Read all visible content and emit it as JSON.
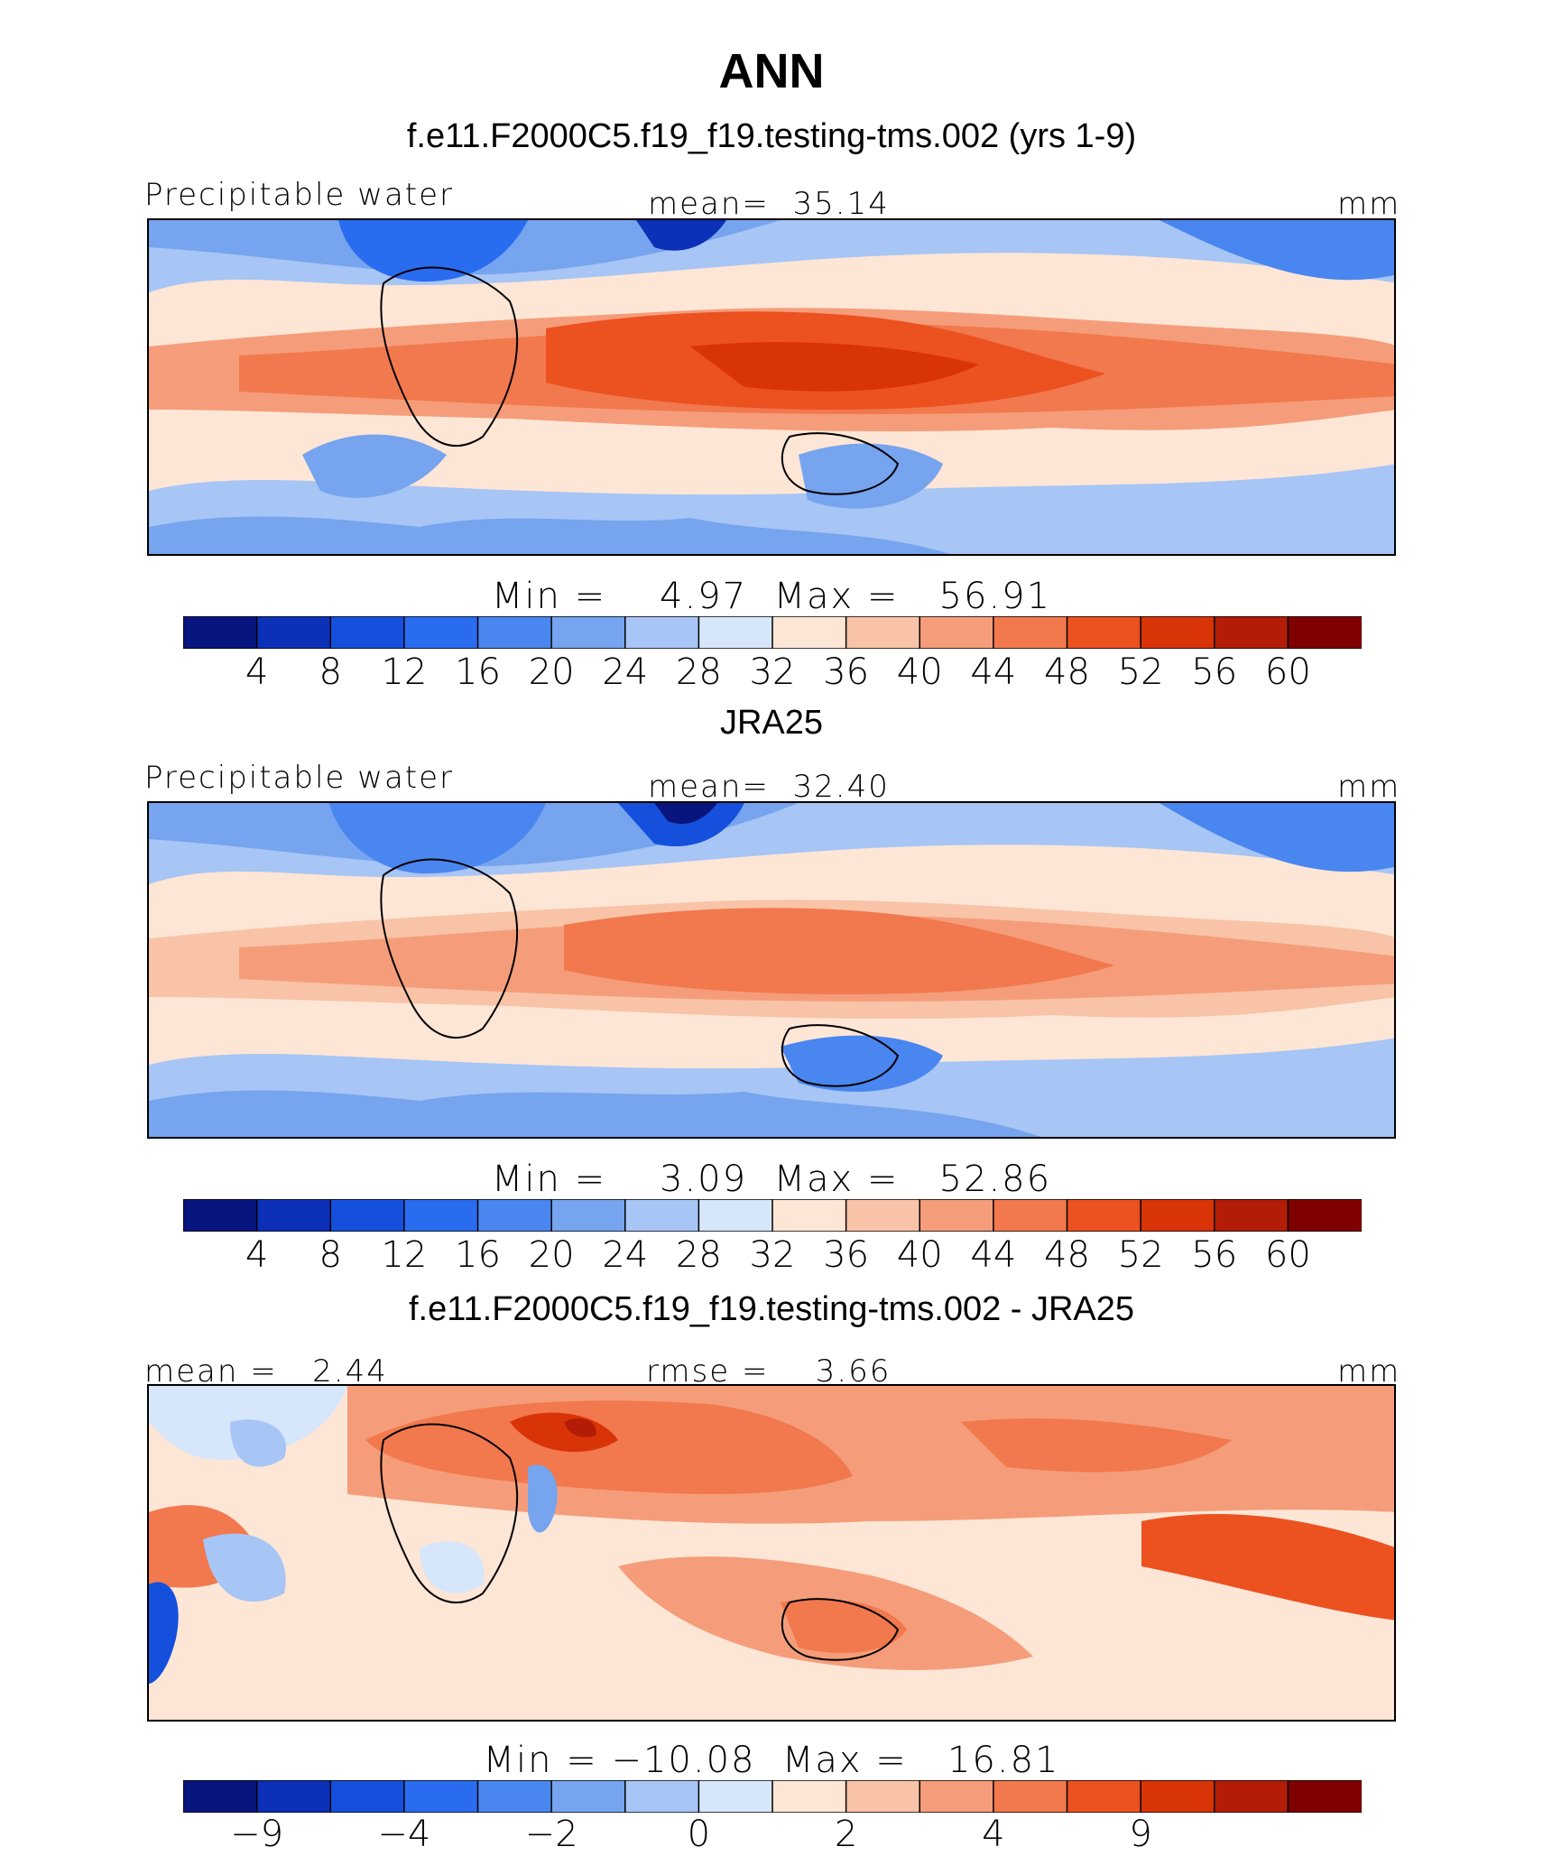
{
  "title": "ANN",
  "colorbar_colors": [
    "#08157f",
    "#0c30b8",
    "#1450dc",
    "#2a6cf0",
    "#4a86ef",
    "#76a4ee",
    "#a7c5f5",
    "#d6e6fb",
    "#fde6d6",
    "#f9c3a7",
    "#f59d7a",
    "#f2784e",
    "#ec5120",
    "#d93308",
    "#b31c06",
    "#800000"
  ],
  "panels": [
    {
      "id": "model",
      "subtitle": "f.e11.F2000C5.f19_f19.testing-tms.002 (yrs 1-9)",
      "left_label": "Precipitable water",
      "center_label": "mean=  35.14",
      "right_label": "mm",
      "minmax": "Min =    4.97  Max =   56.91",
      "ticks": [
        "4",
        "8",
        "12",
        "16",
        "20",
        "24",
        "28",
        "32",
        "36",
        "40",
        "44",
        "48",
        "52",
        "56",
        "60"
      ]
    },
    {
      "id": "obs",
      "subtitle": "JRA25",
      "left_label": "Precipitable water",
      "center_label": "mean=  32.40",
      "right_label": "mm",
      "minmax": "Min =    3.09  Max =   52.86",
      "ticks": [
        "4",
        "8",
        "12",
        "16",
        "20",
        "24",
        "28",
        "32",
        "36",
        "40",
        "44",
        "48",
        "52",
        "56",
        "60"
      ]
    },
    {
      "id": "diff",
      "subtitle": "f.e11.F2000C5.f19_f19.testing-tms.002 - JRA25",
      "left_label": "mean =   2.44",
      "center_label": "rmse =    3.66",
      "right_label": "mm",
      "minmax": "Min = −10.08  Max =   16.81",
      "ticks": [
        "−9",
        "",
        "−4",
        "",
        "−2",
        "",
        "0",
        "",
        "2",
        "",
        "4",
        "",
        "9",
        "",
        " "
      ]
    }
  ]
}
